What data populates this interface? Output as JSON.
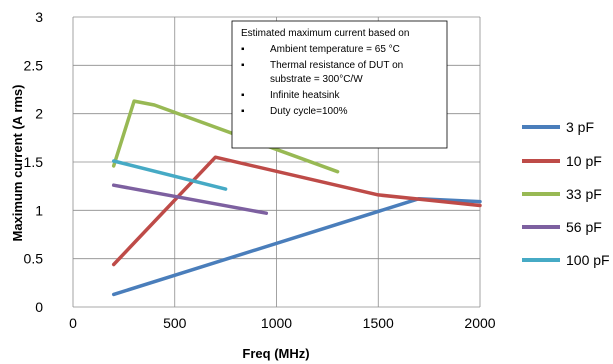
{
  "chart_data": {
    "type": "line",
    "title": "",
    "xlabel": "Freq (MHz)",
    "ylabel": "Maximum current (A rms)",
    "xlim": [
      0,
      2000
    ],
    "ylim": [
      0,
      3
    ],
    "x_ticks": [
      "0",
      "500",
      "1000",
      "1500",
      "2000"
    ],
    "y_ticks": [
      "0",
      "0.5",
      "1",
      "1.5",
      "2",
      "2.5",
      "3"
    ],
    "grid": true,
    "legend_position": "right",
    "series": [
      {
        "name": "3 pF",
        "color": "#4a7ebb",
        "points": [
          [
            200,
            0.13
          ],
          [
            1700,
            1.12
          ],
          [
            2000,
            1.09
          ]
        ]
      },
      {
        "name": "10 pF",
        "color": "#be4b48",
        "points": [
          [
            200,
            0.44
          ],
          [
            700,
            1.55
          ],
          [
            1500,
            1.16
          ],
          [
            2000,
            1.05
          ]
        ]
      },
      {
        "name": "33 pF",
        "color": "#98b954",
        "points": [
          [
            200,
            1.46
          ],
          [
            300,
            2.13
          ],
          [
            400,
            2.09
          ],
          [
            1300,
            1.4
          ]
        ]
      },
      {
        "name": "56 pF",
        "color": "#7d60a0",
        "points": [
          [
            200,
            1.26
          ],
          [
            950,
            0.97
          ]
        ]
      },
      {
        "name": "100 pF",
        "color": "#46aac5",
        "points": [
          [
            200,
            1.51
          ],
          [
            750,
            1.22
          ]
        ]
      }
    ],
    "annotation": {
      "heading": "Estimated maximum current based on",
      "bullets": [
        "Ambient temperature = 65 °C",
        "Thermal resistance of  DUT on",
        "substrate  = 300°C/W",
        "Infinite heatsink",
        "Duty cycle=100%"
      ],
      "bullet_symbol": "▪"
    }
  }
}
